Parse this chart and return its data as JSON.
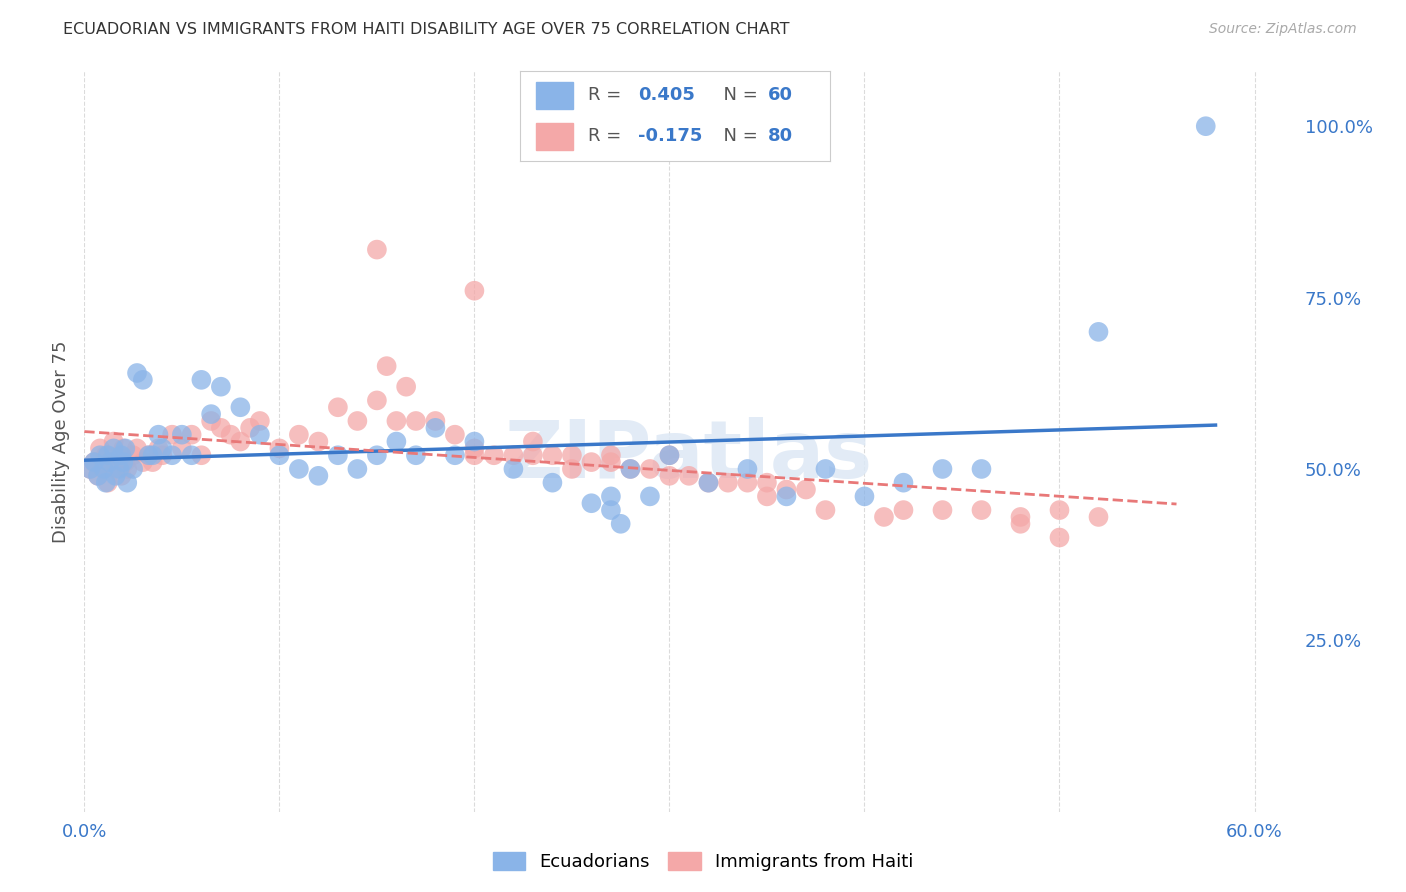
{
  "title": "ECUADORIAN VS IMMIGRANTS FROM HAITI DISABILITY AGE OVER 75 CORRELATION CHART",
  "source": "Source: ZipAtlas.com",
  "ylabel": "Disability Age Over 75",
  "xlim": [
    0.0,
    0.62
  ],
  "ylim": [
    0.0,
    1.08
  ],
  "ytick_values": [
    0.0,
    0.25,
    0.5,
    0.75,
    1.0
  ],
  "ytick_labels": [
    "",
    "25.0%",
    "50.0%",
    "75.0%",
    "100.0%"
  ],
  "xtick_values": [
    0.0,
    0.1,
    0.2,
    0.3,
    0.4,
    0.5,
    0.6
  ],
  "xtick_labels": [
    "0.0%",
    "",
    "",
    "",
    "",
    "",
    "60.0%"
  ],
  "color_blue": "#8ab4e8",
  "color_pink": "#f4a8a8",
  "color_blue_line": "#3a78c9",
  "color_pink_line": "#e87878",
  "color_blue_text": "#3a78c9",
  "color_grid": "#cccccc",
  "ecuadorians_x": [
    0.003,
    0.005,
    0.007,
    0.008,
    0.01,
    0.011,
    0.012,
    0.013,
    0.015,
    0.016,
    0.018,
    0.019,
    0.02,
    0.021,
    0.022,
    0.025,
    0.027,
    0.03,
    0.033,
    0.035,
    0.038,
    0.04,
    0.045,
    0.05,
    0.055,
    0.06,
    0.065,
    0.07,
    0.08,
    0.09,
    0.1,
    0.11,
    0.12,
    0.13,
    0.14,
    0.15,
    0.16,
    0.17,
    0.18,
    0.19,
    0.2,
    0.22,
    0.24,
    0.26,
    0.27,
    0.28,
    0.29,
    0.3,
    0.32,
    0.34,
    0.36,
    0.38,
    0.4,
    0.42,
    0.44,
    0.46,
    0.27,
    0.275,
    0.52,
    0.575
  ],
  "ecuadorians_y": [
    0.5,
    0.51,
    0.49,
    0.52,
    0.5,
    0.48,
    0.52,
    0.51,
    0.53,
    0.49,
    0.5,
    0.52,
    0.51,
    0.53,
    0.48,
    0.5,
    0.64,
    0.63,
    0.52,
    0.52,
    0.55,
    0.53,
    0.52,
    0.55,
    0.52,
    0.63,
    0.58,
    0.62,
    0.59,
    0.55,
    0.52,
    0.5,
    0.49,
    0.52,
    0.5,
    0.52,
    0.54,
    0.52,
    0.56,
    0.52,
    0.54,
    0.5,
    0.48,
    0.45,
    0.46,
    0.5,
    0.46,
    0.52,
    0.48,
    0.5,
    0.46,
    0.5,
    0.46,
    0.48,
    0.5,
    0.5,
    0.44,
    0.42,
    0.7,
    1.0
  ],
  "haiti_x": [
    0.003,
    0.005,
    0.007,
    0.008,
    0.01,
    0.011,
    0.012,
    0.013,
    0.015,
    0.016,
    0.018,
    0.019,
    0.02,
    0.021,
    0.022,
    0.025,
    0.027,
    0.03,
    0.033,
    0.035,
    0.038,
    0.04,
    0.045,
    0.05,
    0.055,
    0.06,
    0.065,
    0.07,
    0.075,
    0.08,
    0.085,
    0.09,
    0.1,
    0.11,
    0.12,
    0.13,
    0.14,
    0.15,
    0.16,
    0.17,
    0.18,
    0.19,
    0.2,
    0.21,
    0.22,
    0.23,
    0.24,
    0.25,
    0.26,
    0.27,
    0.28,
    0.29,
    0.3,
    0.31,
    0.32,
    0.33,
    0.34,
    0.35,
    0.36,
    0.37,
    0.155,
    0.165,
    0.2,
    0.23,
    0.25,
    0.27,
    0.3,
    0.35,
    0.38,
    0.41,
    0.42,
    0.44,
    0.46,
    0.48,
    0.5,
    0.52,
    0.15,
    0.2,
    0.5,
    0.48
  ],
  "haiti_y": [
    0.5,
    0.51,
    0.49,
    0.53,
    0.5,
    0.52,
    0.48,
    0.51,
    0.54,
    0.5,
    0.52,
    0.49,
    0.53,
    0.51,
    0.5,
    0.52,
    0.53,
    0.51,
    0.52,
    0.51,
    0.53,
    0.52,
    0.55,
    0.53,
    0.55,
    0.52,
    0.57,
    0.56,
    0.55,
    0.54,
    0.56,
    0.57,
    0.53,
    0.55,
    0.54,
    0.59,
    0.57,
    0.6,
    0.57,
    0.57,
    0.57,
    0.55,
    0.53,
    0.52,
    0.52,
    0.52,
    0.52,
    0.5,
    0.51,
    0.51,
    0.5,
    0.5,
    0.49,
    0.49,
    0.48,
    0.48,
    0.48,
    0.48,
    0.47,
    0.47,
    0.65,
    0.62,
    0.52,
    0.54,
    0.52,
    0.52,
    0.52,
    0.46,
    0.44,
    0.43,
    0.44,
    0.44,
    0.44,
    0.43,
    0.44,
    0.43,
    0.82,
    0.76,
    0.4,
    0.42
  ],
  "background_color": "#ffffff"
}
